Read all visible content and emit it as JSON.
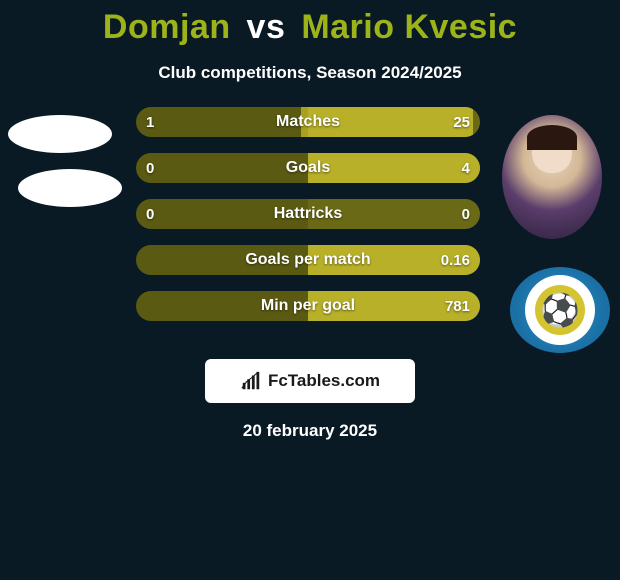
{
  "title": {
    "player1": "Domjan",
    "vs": "vs",
    "player2": "Mario Kvesic",
    "player1_color": "#9cb319",
    "vs_color": "#ffffff",
    "player2_color": "#9cb319",
    "fontsize": 34
  },
  "subtitle": {
    "text": "Club competitions, Season 2024/2025",
    "color": "#ffffff",
    "fontsize": 17
  },
  "background_color": "#0a1a25",
  "bar_style": {
    "height": 30,
    "gap": 16,
    "border_radius": 15,
    "bg_left_color": "#5a5a12",
    "bg_right_color": "#6a6a16",
    "fill_left_color": "#a8a020",
    "fill_right_color": "#b8b028",
    "label_color": "#ffffff",
    "label_fontsize": 16,
    "value_color": "#ffffff",
    "value_fontsize": 15
  },
  "bars": [
    {
      "label": "Matches",
      "left_text": "1",
      "right_text": "25",
      "left_pct": 3.8,
      "right_pct": 96.2
    },
    {
      "label": "Goals",
      "left_text": "0",
      "right_text": "4",
      "left_pct": 0.0,
      "right_pct": 100.0
    },
    {
      "label": "Hattricks",
      "left_text": "0",
      "right_text": "0",
      "left_pct": 0.0,
      "right_pct": 0.0
    },
    {
      "label": "Goals per match",
      "left_text": "",
      "right_text": "0.16",
      "left_pct": 0.0,
      "right_pct": 100.0
    },
    {
      "label": "Min per goal",
      "left_text": "",
      "right_text": "781",
      "left_pct": 0.0,
      "right_pct": 100.0
    }
  ],
  "avatars": {
    "left1": {
      "shape": "ellipse",
      "color": "#ffffff"
    },
    "left2": {
      "shape": "ellipse",
      "color": "#ffffff"
    },
    "right1": {
      "shape": "player-photo"
    },
    "right2": {
      "shape": "club-crest",
      "ring_color": "#2a8fc4",
      "inner_color": "#d4c430"
    }
  },
  "badge": {
    "text": "FcTables.com",
    "icon": "bar-chart-icon",
    "bg_color": "#ffffff",
    "text_color": "#1a1a1a",
    "fontsize": 17
  },
  "date": {
    "text": "20 february 2025",
    "color": "#ffffff",
    "fontsize": 17
  }
}
